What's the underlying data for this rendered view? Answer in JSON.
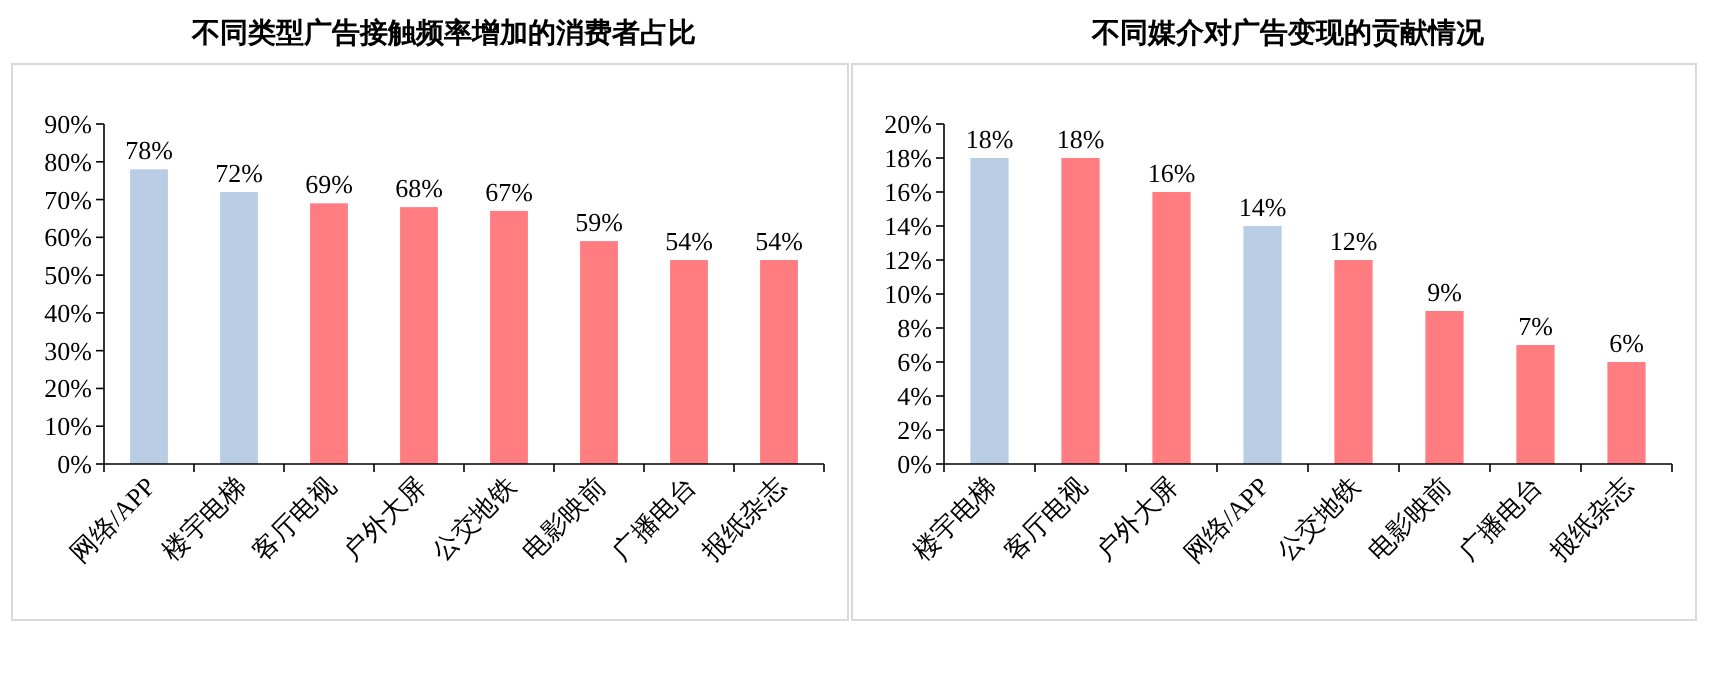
{
  "chart_data": [
    {
      "type": "bar",
      "title": "不同类型广告接触频率增加的消费者占比",
      "categories": [
        "网络/APP",
        "楼宇电梯",
        "客厅电视",
        "户外大屏",
        "公交地铁",
        "电影映前",
        "广播电台",
        "报纸杂志"
      ],
      "values": [
        78,
        72,
        69,
        68,
        67,
        59,
        54,
        54
      ],
      "colors": [
        "#b9cde5",
        "#b9cde5",
        "#ff7c80",
        "#ff7c80",
        "#ff7c80",
        "#ff7c80",
        "#ff7c80",
        "#ff7c80"
      ],
      "value_labels": [
        "78%",
        "72%",
        "69%",
        "68%",
        "67%",
        "59%",
        "54%",
        "54%"
      ],
      "ylim": [
        0,
        90
      ],
      "yticks": [
        {
          "value": 0,
          "label": "0%"
        },
        {
          "value": 10,
          "label": "10%"
        },
        {
          "value": 20,
          "label": "20%"
        },
        {
          "value": 30,
          "label": "30%"
        },
        {
          "value": 40,
          "label": "40%"
        },
        {
          "value": 50,
          "label": "50%"
        },
        {
          "value": 60,
          "label": "60%"
        },
        {
          "value": 70,
          "label": "70%"
        },
        {
          "value": 80,
          "label": "80%"
        },
        {
          "value": 90,
          "label": "90%"
        }
      ]
    },
    {
      "type": "bar",
      "title": "不同媒介对广告变现的贡献情况",
      "categories": [
        "楼宇电梯",
        "客厅电视",
        "户外大屏",
        "网络/APP",
        "公交地铁",
        "电影映前",
        "广播电台",
        "报纸杂志"
      ],
      "values": [
        18,
        18,
        16,
        14,
        12,
        9,
        7,
        6
      ],
      "colors": [
        "#b9cde5",
        "#ff7c80",
        "#ff7c80",
        "#b9cde5",
        "#ff7c80",
        "#ff7c80",
        "#ff7c80",
        "#ff7c80"
      ],
      "value_labels": [
        "18%",
        "18%",
        "16%",
        "14%",
        "12%",
        "9%",
        "7%",
        "6%"
      ],
      "ylim": [
        0,
        20
      ],
      "yticks": [
        {
          "value": 0,
          "label": "0%"
        },
        {
          "value": 2,
          "label": "2%"
        },
        {
          "value": 4,
          "label": "4%"
        },
        {
          "value": 6,
          "label": "6%"
        },
        {
          "value": 8,
          "label": "8%"
        },
        {
          "value": 10,
          "label": "10%"
        },
        {
          "value": 12,
          "label": "12%"
        },
        {
          "value": 14,
          "label": "14%"
        },
        {
          "value": 16,
          "label": "16%"
        },
        {
          "value": 18,
          "label": "18%"
        },
        {
          "value": 20,
          "label": "20%"
        }
      ]
    }
  ]
}
